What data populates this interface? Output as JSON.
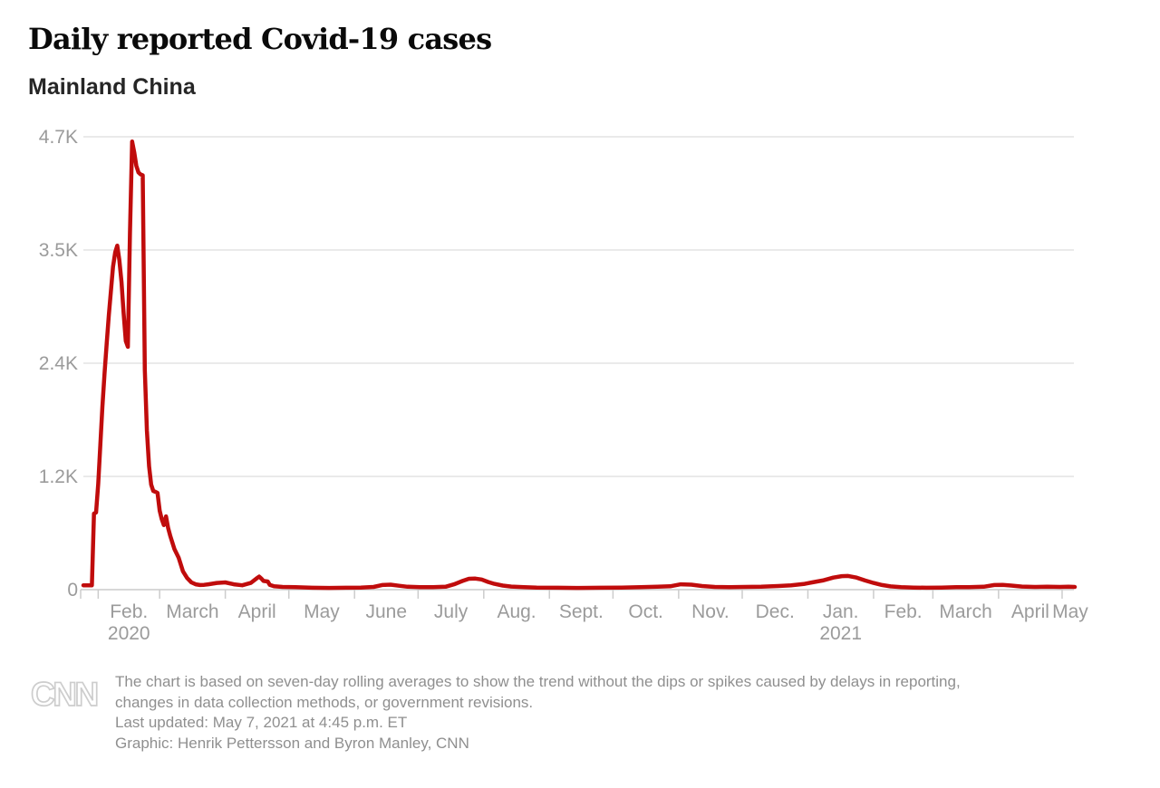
{
  "chart_data": {
    "type": "line",
    "title": "Daily reported Covid-19 cases",
    "subtitle": "Mainland China",
    "series_name": "Daily reported Covid-19 cases, seven-day rolling average",
    "line_color": "#c00c0c",
    "grid": true,
    "legend_position": "none",
    "x_range": [
      "2020-01-25",
      "2021-05-07"
    ],
    "ylim": [
      0,
      4700
    ],
    "y_ticks": [
      {
        "value": 4700,
        "label": "4.7K"
      },
      {
        "value": 3525,
        "label": "3.5K"
      },
      {
        "value": 2350,
        "label": "2.4K"
      },
      {
        "value": 1175,
        "label": "1.2K"
      },
      {
        "value": 0,
        "label": "0"
      }
    ],
    "x_ticks": [
      {
        "date": "2020-02-01",
        "label": "Feb.",
        "year": "2020"
      },
      {
        "date": "2020-03-01",
        "label": "March"
      },
      {
        "date": "2020-04-01",
        "label": "April"
      },
      {
        "date": "2020-05-01",
        "label": "May"
      },
      {
        "date": "2020-06-01",
        "label": "June"
      },
      {
        "date": "2020-07-01",
        "label": "July"
      },
      {
        "date": "2020-08-01",
        "label": "Aug."
      },
      {
        "date": "2020-09-01",
        "label": "Sept."
      },
      {
        "date": "2020-10-01",
        "label": "Oct."
      },
      {
        "date": "2020-11-01",
        "label": "Nov."
      },
      {
        "date": "2020-12-01",
        "label": "Dec."
      },
      {
        "date": "2021-01-01",
        "label": "Jan.",
        "year": "2021"
      },
      {
        "date": "2021-02-01",
        "label": "Feb."
      },
      {
        "date": "2021-03-01",
        "label": "March"
      },
      {
        "date": "2021-04-01",
        "label": "April"
      },
      {
        "date": "2021-05-01",
        "label": "May"
      }
    ],
    "points": [
      [
        "2020-01-25",
        45
      ],
      [
        "2020-01-27",
        45
      ],
      [
        "2020-01-29",
        45
      ],
      [
        "2020-01-30",
        790
      ],
      [
        "2020-01-31",
        800
      ],
      [
        "2020-02-01",
        1100
      ],
      [
        "2020-02-02",
        1500
      ],
      [
        "2020-02-03",
        1900
      ],
      [
        "2020-02-04",
        2250
      ],
      [
        "2020-02-05",
        2550
      ],
      [
        "2020-02-06",
        2850
      ],
      [
        "2020-02-07",
        3100
      ],
      [
        "2020-02-08",
        3350
      ],
      [
        "2020-02-09",
        3500
      ],
      [
        "2020-02-10",
        3570
      ],
      [
        "2020-02-11",
        3420
      ],
      [
        "2020-02-12",
        3190
      ],
      [
        "2020-02-13",
        2870
      ],
      [
        "2020-02-14",
        2580
      ],
      [
        "2020-02-15",
        2520
      ],
      [
        "2020-02-16",
        3700
      ],
      [
        "2020-02-17",
        4650
      ],
      [
        "2020-02-18",
        4540
      ],
      [
        "2020-02-19",
        4400
      ],
      [
        "2020-02-20",
        4330
      ],
      [
        "2020-02-21",
        4310
      ],
      [
        "2020-02-22",
        4300
      ],
      [
        "2020-02-23",
        2280
      ],
      [
        "2020-02-24",
        1650
      ],
      [
        "2020-02-25",
        1280
      ],
      [
        "2020-02-26",
        1090
      ],
      [
        "2020-02-27",
        1025
      ],
      [
        "2020-02-28",
        1015
      ],
      [
        "2020-02-29",
        1005
      ],
      [
        "2020-03-01",
        820
      ],
      [
        "2020-03-02",
        730
      ],
      [
        "2020-03-03",
        670
      ],
      [
        "2020-03-04",
        760
      ],
      [
        "2020-03-05",
        640
      ],
      [
        "2020-03-06",
        560
      ],
      [
        "2020-03-08",
        420
      ],
      [
        "2020-03-10",
        330
      ],
      [
        "2020-03-12",
        190
      ],
      [
        "2020-03-14",
        120
      ],
      [
        "2020-03-16",
        75
      ],
      [
        "2020-03-18",
        55
      ],
      [
        "2020-03-20",
        48
      ],
      [
        "2020-03-22",
        50
      ],
      [
        "2020-03-24",
        55
      ],
      [
        "2020-03-26",
        62
      ],
      [
        "2020-03-28",
        70
      ],
      [
        "2020-04-01",
        75
      ],
      [
        "2020-04-05",
        55
      ],
      [
        "2020-04-09",
        45
      ],
      [
        "2020-04-13",
        70
      ],
      [
        "2020-04-16",
        120
      ],
      [
        "2020-04-17",
        135
      ],
      [
        "2020-04-18",
        115
      ],
      [
        "2020-04-19",
        90
      ],
      [
        "2020-04-21",
        85
      ],
      [
        "2020-04-22",
        50
      ],
      [
        "2020-04-24",
        35
      ],
      [
        "2020-04-28",
        28
      ],
      [
        "2020-05-04",
        25
      ],
      [
        "2020-05-12",
        20
      ],
      [
        "2020-05-20",
        18
      ],
      [
        "2020-05-28",
        20
      ],
      [
        "2020-06-04",
        22
      ],
      [
        "2020-06-10",
        28
      ],
      [
        "2020-06-14",
        48
      ],
      [
        "2020-06-18",
        52
      ],
      [
        "2020-06-22",
        40
      ],
      [
        "2020-06-26",
        30
      ],
      [
        "2020-07-02",
        26
      ],
      [
        "2020-07-08",
        26
      ],
      [
        "2020-07-14",
        30
      ],
      [
        "2020-07-18",
        55
      ],
      [
        "2020-07-22",
        90
      ],
      [
        "2020-07-25",
        113
      ],
      [
        "2020-07-28",
        115
      ],
      [
        "2020-07-31",
        105
      ],
      [
        "2020-08-03",
        80
      ],
      [
        "2020-08-06",
        60
      ],
      [
        "2020-08-10",
        42
      ],
      [
        "2020-08-14",
        32
      ],
      [
        "2020-08-20",
        26
      ],
      [
        "2020-08-26",
        22
      ],
      [
        "2020-09-05",
        20
      ],
      [
        "2020-09-15",
        18
      ],
      [
        "2020-09-25",
        20
      ],
      [
        "2020-10-05",
        22
      ],
      [
        "2020-10-14",
        26
      ],
      [
        "2020-10-22",
        30
      ],
      [
        "2020-10-28",
        35
      ],
      [
        "2020-11-02",
        55
      ],
      [
        "2020-11-07",
        52
      ],
      [
        "2020-11-12",
        38
      ],
      [
        "2020-11-18",
        28
      ],
      [
        "2020-11-25",
        26
      ],
      [
        "2020-12-02",
        28
      ],
      [
        "2020-12-10",
        30
      ],
      [
        "2020-12-18",
        38
      ],
      [
        "2020-12-24",
        45
      ],
      [
        "2020-12-30",
        58
      ],
      [
        "2021-01-03",
        75
      ],
      [
        "2021-01-08",
        95
      ],
      [
        "2021-01-13",
        125
      ],
      [
        "2021-01-17",
        140
      ],
      [
        "2021-01-20",
        142
      ],
      [
        "2021-01-24",
        125
      ],
      [
        "2021-01-28",
        95
      ],
      [
        "2021-02-01",
        70
      ],
      [
        "2021-02-05",
        48
      ],
      [
        "2021-02-09",
        34
      ],
      [
        "2021-02-14",
        26
      ],
      [
        "2021-02-20",
        22
      ],
      [
        "2021-02-26",
        20
      ],
      [
        "2021-03-05",
        22
      ],
      [
        "2021-03-12",
        25
      ],
      [
        "2021-03-18",
        26
      ],
      [
        "2021-03-25",
        30
      ],
      [
        "2021-03-30",
        48
      ],
      [
        "2021-04-03",
        50
      ],
      [
        "2021-04-07",
        42
      ],
      [
        "2021-04-12",
        32
      ],
      [
        "2021-04-18",
        28
      ],
      [
        "2021-04-24",
        30
      ],
      [
        "2021-04-30",
        28
      ],
      [
        "2021-05-04",
        30
      ],
      [
        "2021-05-07",
        28
      ]
    ]
  },
  "footer": {
    "logo": "CNN",
    "note_lines": [
      "The chart is based on seven-day rolling averages to show the trend without the dips or spikes caused by delays in reporting,",
      "changes in data collection methods, or government revisions."
    ],
    "last_updated": "Last updated: May 7, 2021 at 4:45 p.m. ET",
    "credit": "Graphic: Henrik Pettersson and Byron Manley, CNN"
  },
  "colors": {
    "line": "#c00c0c",
    "gridline": "#e4e4e4",
    "axis_line": "#cccccc",
    "tick": "#cccccc",
    "axis_label": "#9b9b9b",
    "title": "#0a0a0a",
    "subtitle": "#262626",
    "footer_text": "#8f8f8f",
    "logo": "#cdcdcd"
  }
}
